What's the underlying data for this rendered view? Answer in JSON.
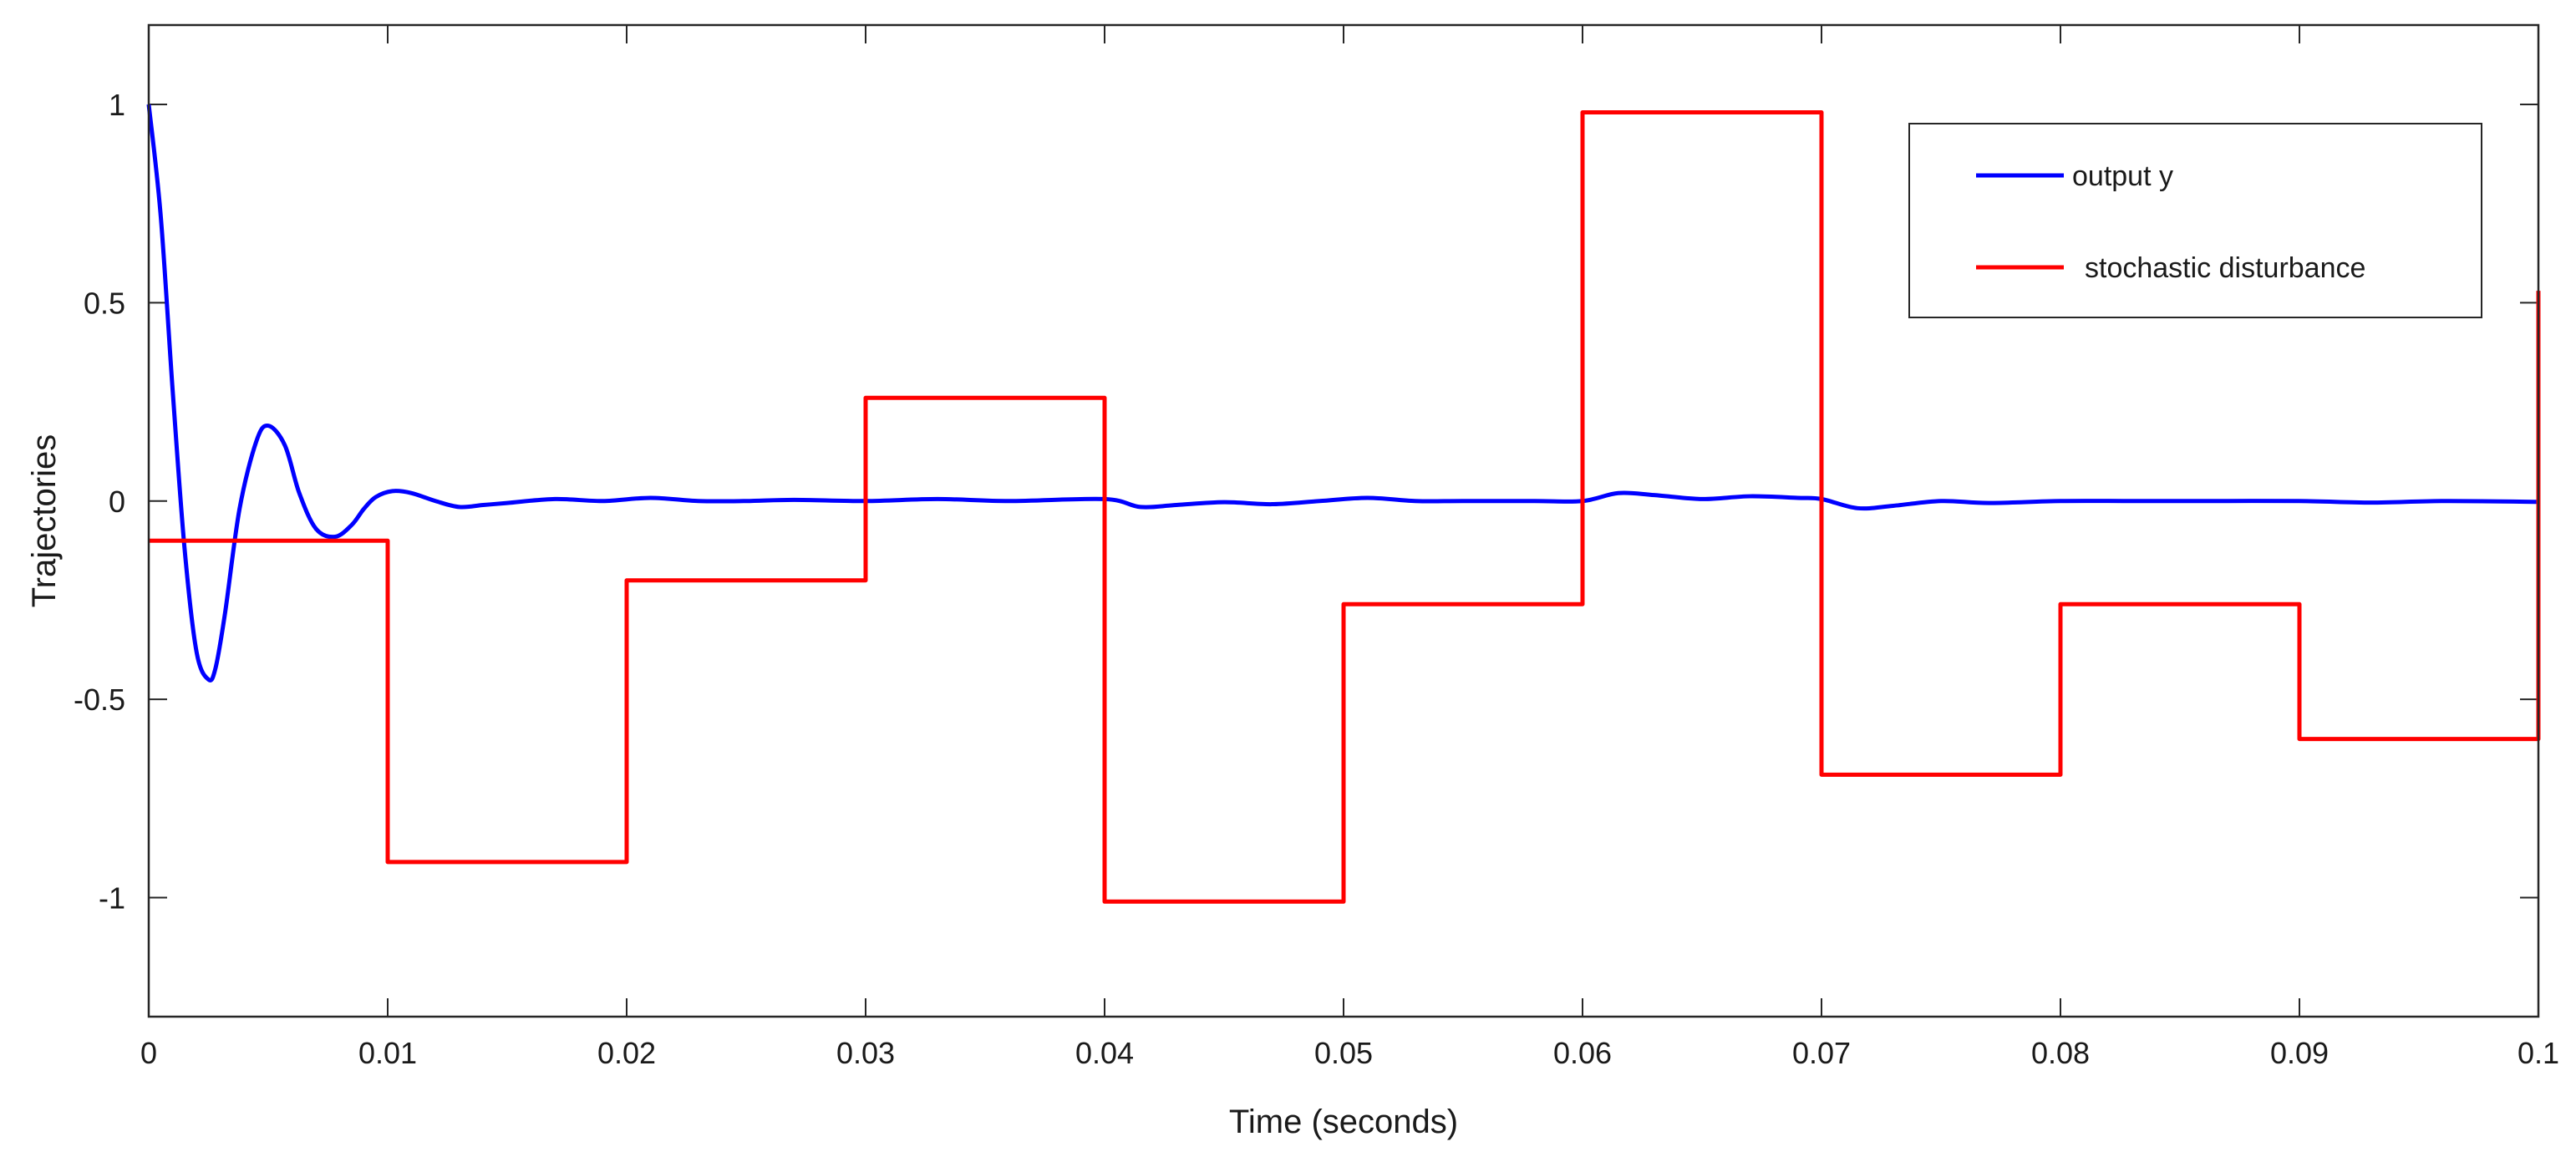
{
  "chart_data": {
    "type": "line",
    "xlabel": "Time (seconds)",
    "ylabel": "Trajectories",
    "xlim": [
      0,
      0.1
    ],
    "ylim": [
      -1.3,
      1.2
    ],
    "xticks": [
      0,
      0.01,
      0.02,
      0.03,
      0.04,
      0.05,
      0.06,
      0.07,
      0.08,
      0.09,
      0.1
    ],
    "xtick_labels": [
      "0",
      "0.01",
      "0.02",
      "0.03",
      "0.04",
      "0.05",
      "0.06",
      "0.07",
      "0.08",
      "0.09",
      "0.1"
    ],
    "yticks": [
      -1,
      -0.5,
      0,
      0.5,
      1
    ],
    "ytick_labels": [
      "-1",
      "-0.5",
      "0",
      "0.5",
      "1"
    ],
    "grid": false,
    "legend_position": "top-right",
    "series": [
      {
        "name": "output y",
        "color": "#0000ff",
        "style": "line",
        "x": [
          0,
          0.0005,
          0.001,
          0.0015,
          0.002,
          0.0025,
          0.0028,
          0.0032,
          0.0038,
          0.0045,
          0.005,
          0.0057,
          0.0063,
          0.007,
          0.0078,
          0.0085,
          0.009,
          0.0095,
          0.0102,
          0.011,
          0.012,
          0.013,
          0.014,
          0.015,
          0.017,
          0.019,
          0.021,
          0.023,
          0.025,
          0.027,
          0.03,
          0.033,
          0.036,
          0.04,
          0.0415,
          0.043,
          0.045,
          0.047,
          0.049,
          0.051,
          0.053,
          0.055,
          0.058,
          0.06,
          0.0615,
          0.063,
          0.065,
          0.067,
          0.069,
          0.07,
          0.0715,
          0.073,
          0.075,
          0.077,
          0.08,
          0.083,
          0.086,
          0.09,
          0.093,
          0.096,
          0.1
        ],
        "y": [
          1.0,
          0.72,
          0.28,
          -0.12,
          -0.38,
          -0.45,
          -0.42,
          -0.28,
          -0.02,
          0.15,
          0.19,
          0.14,
          0.02,
          -0.07,
          -0.09,
          -0.06,
          -0.02,
          0.01,
          0.025,
          0.02,
          0.0,
          -0.015,
          -0.01,
          -0.005,
          0.005,
          0.0,
          0.008,
          0.0,
          0.0,
          0.003,
          0.0,
          0.005,
          0.0,
          0.005,
          -0.015,
          -0.01,
          -0.003,
          -0.008,
          0.0,
          0.008,
          0.0,
          0.0,
          0.0,
          0.0,
          0.02,
          0.015,
          0.005,
          0.012,
          0.008,
          0.005,
          -0.018,
          -0.012,
          0.0,
          -0.005,
          0.0,
          0.0,
          0.0,
          0.0,
          -0.004,
          0.0,
          -0.002
        ]
      },
      {
        "name": "stochastic disturbance",
        "color": "#ff0000",
        "style": "step",
        "x": [
          0,
          0.01,
          0.02,
          0.03,
          0.04,
          0.05,
          0.06,
          0.07,
          0.08,
          0.09,
          0.1
        ],
        "y": [
          -0.1,
          -0.91,
          -0.2,
          0.26,
          -1.01,
          -0.26,
          0.98,
          -0.69,
          -0.26,
          -0.6,
          0.53
        ]
      }
    ]
  }
}
